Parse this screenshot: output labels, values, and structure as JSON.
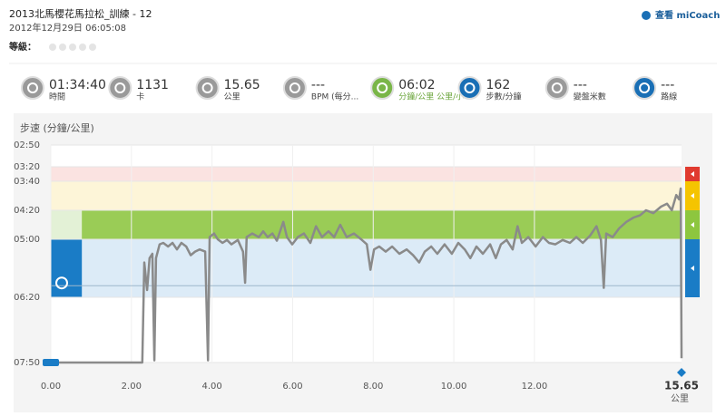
{
  "header": {
    "title": "2013北馬櫻花馬拉松_訓練 - 12",
    "date": "2012年12月29日 06:05:08",
    "rating_label": "等級：",
    "link": "查看 miCoach"
  },
  "stats": [
    {
      "value": "01:34:40",
      "label": "時間"
    },
    {
      "value": "1131",
      "label": "卡"
    },
    {
      "value": "15.65",
      "label": "公里"
    },
    {
      "value": "---",
      "label": "BPM (每分..."
    },
    {
      "value": "06:02",
      "label": "分鐘/公里  公里/小"
    },
    {
      "value": "162",
      "label": "步數/分鐘"
    },
    {
      "value": "---",
      "label": "變盤米數"
    },
    {
      "value": "---",
      "label": "路線"
    }
  ],
  "chart_data": {
    "type": "line",
    "title": "步速 (分鐘/公里)",
    "x_unit": "公里",
    "xlim": [
      0,
      15.65
    ],
    "ylim": [
      170,
      470
    ],
    "y_inverted": true,
    "grid": true,
    "xticks": [
      {
        "value": 0,
        "label": "0.00"
      },
      {
        "value": 2,
        "label": "2.00"
      },
      {
        "value": 4,
        "label": "4.00"
      },
      {
        "value": 6,
        "label": "6.00"
      },
      {
        "value": 8,
        "label": "8.00"
      },
      {
        "value": 10,
        "label": "10.00"
      },
      {
        "value": 12,
        "label": "12.00"
      },
      {
        "value": 15.65,
        "label": "15.65"
      }
    ],
    "yticks": [
      {
        "value": 170,
        "label": "02:50"
      },
      {
        "value": 200,
        "label": "03:20"
      },
      {
        "value": 220,
        "label": "03:40"
      },
      {
        "value": 260,
        "label": "04:20"
      },
      {
        "value": 300,
        "label": "05:00"
      },
      {
        "value": 380,
        "label": "06:20"
      },
      {
        "value": 470,
        "label": "07:50"
      }
    ],
    "zones": [
      {
        "from": 200,
        "to": 220,
        "color": "#fbe3e1",
        "tab_color": "#e03a2f"
      },
      {
        "from": 220,
        "to": 260,
        "color": "#fdf5d8",
        "tab_color": "#f5c400"
      },
      {
        "from": 260,
        "to": 300,
        "color": "#e3f1d6",
        "tab_color": "#8dc63f"
      },
      {
        "from": 300,
        "to": 380,
        "color": "#dcebf7",
        "tab_color": "#1a7cc6"
      }
    ],
    "highlights": [
      {
        "zone": 3,
        "from": 0,
        "to": 0.77,
        "color": "#1a7cc6"
      },
      {
        "zone": 2,
        "from": 0.77,
        "to": 15.65,
        "color": "#8dc63f"
      }
    ],
    "reference_line": 364,
    "x": [
      0,
      2.27,
      2.32,
      2.39,
      2.45,
      2.52,
      2.57,
      2.61,
      2.7,
      2.79,
      2.91,
      3.02,
      3.13,
      3.24,
      3.36,
      3.47,
      3.58,
      3.69,
      3.83,
      3.9,
      3.94,
      4.05,
      4.14,
      4.26,
      4.37,
      4.48,
      4.64,
      4.77,
      4.82,
      4.86,
      5.0,
      5.16,
      5.27,
      5.38,
      5.5,
      5.61,
      5.77,
      5.86,
      5.99,
      6.13,
      6.28,
      6.44,
      6.58,
      6.73,
      6.89,
      7.03,
      7.18,
      7.34,
      7.52,
      7.7,
      7.84,
      7.93,
      8.02,
      8.15,
      8.31,
      8.47,
      8.65,
      8.83,
      8.99,
      9.14,
      9.28,
      9.44,
      9.59,
      9.77,
      9.95,
      10.11,
      10.27,
      10.41,
      10.56,
      10.72,
      10.9,
      11.04,
      11.17,
      11.31,
      11.46,
      11.58,
      11.69,
      11.85,
      12.03,
      12.21,
      12.36,
      12.52,
      12.7,
      12.88,
      13.04,
      13.2,
      13.38,
      13.54,
      13.65,
      13.72,
      13.78,
      13.94,
      14.1,
      14.28,
      14.46,
      14.62,
      14.77,
      14.95,
      15.14,
      15.29,
      15.41,
      15.52,
      15.59,
      15.63,
      15.65
    ],
    "series": [
      {
        "color": "#8a8a8a",
        "values": [
          470,
          470,
          332,
          370,
          326,
          320,
          467,
          326,
          307,
          305,
          310,
          305,
          314,
          305,
          310,
          322,
          317,
          314,
          317,
          467,
          297,
          292,
          300,
          305,
          301,
          307,
          301,
          317,
          360,
          297,
          292,
          297,
          289,
          297,
          292,
          302,
          276,
          297,
          307,
          297,
          292,
          305,
          282,
          297,
          289,
          297,
          280,
          297,
          292,
          300,
          307,
          342,
          314,
          310,
          317,
          310,
          320,
          314,
          322,
          332,
          317,
          310,
          320,
          307,
          320,
          305,
          314,
          326,
          310,
          320,
          307,
          326,
          307,
          301,
          314,
          282,
          305,
          297,
          310,
          297,
          305,
          307,
          301,
          305,
          297,
          305,
          295,
          282,
          301,
          367,
          292,
          297,
          285,
          276,
          270,
          267,
          260,
          264,
          255,
          251,
          260,
          239,
          245,
          230,
          464
        ]
      }
    ]
  }
}
